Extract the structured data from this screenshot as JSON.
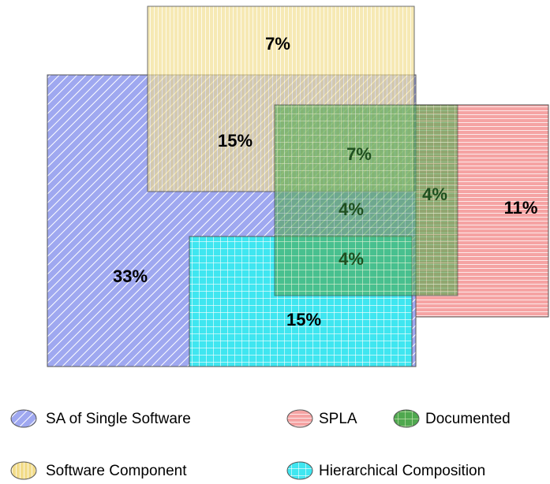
{
  "sets": [
    {
      "name": "SA of Single Software"
    },
    {
      "name": "Software Component"
    },
    {
      "name": "SPLA"
    },
    {
      "name": "Documented"
    },
    {
      "name": "Hierarchical Composition"
    }
  ],
  "regions": [
    {
      "label": "7%"
    },
    {
      "label": "15%"
    },
    {
      "label": "7%"
    },
    {
      "label": "4%"
    },
    {
      "label": "11%"
    },
    {
      "label": "4%"
    },
    {
      "label": "4%"
    },
    {
      "label": "33%"
    },
    {
      "label": "15%"
    }
  ]
}
